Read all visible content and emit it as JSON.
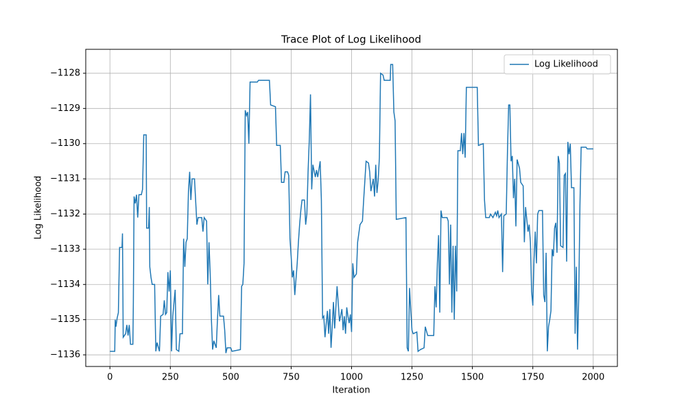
{
  "chart_data": {
    "type": "line",
    "title": "Trace Plot of Log Likelihood",
    "x_label": "Iteration",
    "y_label": "Log Likelihood",
    "grid": true,
    "legend": "upper right",
    "xlim": [
      -100,
      2100
    ],
    "ylim": [
      -1136.33,
      -1127.32
    ],
    "xticks": [
      0,
      250,
      500,
      750,
      1000,
      1250,
      1500,
      1750,
      2000
    ],
    "yticks": [
      {
        "value": -1136,
        "label": "−1136"
      },
      {
        "value": -1135,
        "label": "−1135"
      },
      {
        "value": -1134,
        "label": "−1134"
      },
      {
        "value": -1133,
        "label": "−1133"
      },
      {
        "value": -1132,
        "label": "−1132"
      },
      {
        "value": -1131,
        "label": "−1131"
      },
      {
        "value": -1130,
        "label": "−1130"
      },
      {
        "value": -1129,
        "label": "−1129"
      },
      {
        "value": -1128,
        "label": "−1128"
      }
    ],
    "x": [
      0,
      20,
      22,
      25,
      30,
      35,
      40,
      50,
      52,
      55,
      65,
      70,
      75,
      80,
      85,
      95,
      97,
      100,
      105,
      110,
      115,
      120,
      130,
      135,
      140,
      150,
      152,
      160,
      163,
      165,
      170,
      175,
      185,
      190,
      195,
      205,
      210,
      220,
      225,
      230,
      235,
      240,
      245,
      250,
      255,
      260,
      270,
      275,
      285,
      290,
      300,
      305,
      310,
      315,
      320,
      325,
      330,
      335,
      340,
      350,
      360,
      365,
      380,
      385,
      390,
      400,
      405,
      410,
      415,
      420,
      425,
      430,
      440,
      445,
      450,
      455,
      470,
      475,
      480,
      485,
      500,
      505,
      540,
      545,
      550,
      555,
      560,
      565,
      570,
      575,
      580,
      610,
      615,
      660,
      665,
      685,
      690,
      705,
      710,
      720,
      725,
      735,
      740,
      745,
      750,
      755,
      760,
      765,
      770,
      775,
      780,
      785,
      790,
      795,
      805,
      810,
      815,
      820,
      825,
      830,
      835,
      840,
      850,
      855,
      860,
      870,
      875,
      880,
      885,
      890,
      900,
      905,
      910,
      915,
      920,
      925,
      930,
      940,
      950,
      960,
      965,
      970,
      975,
      980,
      985,
      990,
      995,
      1000,
      1005,
      1010,
      1020,
      1025,
      1035,
      1045,
      1050,
      1060,
      1070,
      1075,
      1080,
      1090,
      1095,
      1100,
      1105,
      1110,
      1115,
      1120,
      1130,
      1135,
      1160,
      1162,
      1170,
      1175,
      1180,
      1185,
      1225,
      1230,
      1235,
      1240,
      1245,
      1250,
      1255,
      1270,
      1275,
      1285,
      1300,
      1305,
      1315,
      1340,
      1345,
      1350,
      1355,
      1360,
      1365,
      1370,
      1375,
      1395,
      1400,
      1405,
      1410,
      1415,
      1420,
      1425,
      1430,
      1435,
      1440,
      1450,
      1455,
      1460,
      1465,
      1470,
      1475,
      1520,
      1525,
      1545,
      1550,
      1555,
      1570,
      1575,
      1585,
      1595,
      1600,
      1605,
      1610,
      1620,
      1625,
      1630,
      1640,
      1645,
      1650,
      1655,
      1660,
      1665,
      1670,
      1675,
      1680,
      1685,
      1695,
      1700,
      1710,
      1715,
      1720,
      1730,
      1735,
      1740,
      1745,
      1750,
      1755,
      1760,
      1765,
      1770,
      1775,
      1790,
      1795,
      1800,
      1805,
      1810,
      1815,
      1820,
      1825,
      1830,
      1835,
      1840,
      1845,
      1850,
      1855,
      1860,
      1865,
      1875,
      1880,
      1885,
      1890,
      1895,
      1900,
      1905,
      1910,
      1920,
      1925,
      1930,
      1935,
      1940,
      1945,
      1950,
      1970,
      1975,
      2000
    ],
    "series": [
      {
        "name": "Log Likelihood",
        "color": "#1f77b4",
        "values": [
          -1135.9,
          -1135.9,
          -1135.0,
          -1135.2,
          -1134.95,
          -1134.8,
          -1132.95,
          -1132.95,
          -1132.55,
          -1135.5,
          -1135.4,
          -1135.15,
          -1135.45,
          -1135.15,
          -1135.7,
          -1135.7,
          -1134.5,
          -1131.5,
          -1131.7,
          -1131.45,
          -1132.1,
          -1131.45,
          -1131.45,
          -1131.3,
          -1129.75,
          -1129.75,
          -1132.4,
          -1132.4,
          -1131.8,
          -1133.5,
          -1133.8,
          -1134.0,
          -1134.0,
          -1135.9,
          -1135.65,
          -1135.9,
          -1134.9,
          -1134.85,
          -1134.45,
          -1134.85,
          -1134.8,
          -1133.65,
          -1134.2,
          -1133.6,
          -1135.9,
          -1134.9,
          -1134.15,
          -1135.85,
          -1135.9,
          -1135.4,
          -1135.4,
          -1132.7,
          -1133.5,
          -1132.8,
          -1132.7,
          -1131.35,
          -1130.8,
          -1131.6,
          -1131.0,
          -1131.0,
          -1132.3,
          -1132.1,
          -1132.1,
          -1132.5,
          -1132.1,
          -1132.2,
          -1134.0,
          -1132.8,
          -1133.7,
          -1135.0,
          -1135.85,
          -1135.6,
          -1135.8,
          -1135.0,
          -1134.3,
          -1134.9,
          -1134.9,
          -1135.3,
          -1135.95,
          -1135.8,
          -1135.8,
          -1135.9,
          -1135.85,
          -1134.05,
          -1134.0,
          -1133.4,
          -1129.05,
          -1129.2,
          -1129.1,
          -1130.0,
          -1128.25,
          -1128.25,
          -1128.2,
          -1128.2,
          -1128.9,
          -1128.95,
          -1130.05,
          -1130.05,
          -1131.1,
          -1131.1,
          -1130.8,
          -1130.8,
          -1130.9,
          -1132.7,
          -1133.2,
          -1133.8,
          -1133.6,
          -1134.3,
          -1133.85,
          -1133.4,
          -1132.8,
          -1132.3,
          -1131.9,
          -1131.6,
          -1131.6,
          -1132.3,
          -1132.0,
          -1130.8,
          -1129.9,
          -1128.6,
          -1131.3,
          -1130.6,
          -1130.95,
          -1130.75,
          -1130.95,
          -1130.5,
          -1131.6,
          -1134.95,
          -1134.9,
          -1135.5,
          -1134.75,
          -1135.4,
          -1134.7,
          -1135.8,
          -1135.2,
          -1134.5,
          -1135.25,
          -1134.05,
          -1135.05,
          -1134.7,
          -1135.3,
          -1134.9,
          -1135.4,
          -1134.65,
          -1134.9,
          -1135.1,
          -1134.85,
          -1135.35,
          -1133.4,
          -1133.8,
          -1133.7,
          -1132.8,
          -1132.3,
          -1132.2,
          -1131.6,
          -1130.5,
          -1130.55,
          -1130.8,
          -1131.35,
          -1131.0,
          -1131.5,
          -1130.6,
          -1131.4,
          -1131.05,
          -1130.4,
          -1128.0,
          -1128.05,
          -1128.2,
          -1128.2,
          -1127.75,
          -1127.75,
          -1129.1,
          -1129.35,
          -1132.15,
          -1132.1,
          -1135.8,
          -1135.9,
          -1134.1,
          -1134.75,
          -1135.3,
          -1135.4,
          -1135.35,
          -1135.9,
          -1135.85,
          -1135.8,
          -1135.2,
          -1135.45,
          -1135.45,
          -1134.05,
          -1134.65,
          -1133.4,
          -1132.6,
          -1134.8,
          -1131.9,
          -1132.1,
          -1132.1,
          -1132.2,
          -1134.0,
          -1132.3,
          -1134.8,
          -1132.9,
          -1135.0,
          -1132.9,
          -1134.2,
          -1130.2,
          -1130.2,
          -1129.7,
          -1130.3,
          -1129.7,
          -1130.4,
          -1128.4,
          -1128.4,
          -1130.05,
          -1130.0,
          -1131.6,
          -1132.1,
          -1132.1,
          -1132.0,
          -1132.1,
          -1131.95,
          -1132.05,
          -1131.9,
          -1132.1,
          -1132.0,
          -1133.65,
          -1132.05,
          -1132.0,
          -1130.25,
          -1128.9,
          -1128.9,
          -1130.5,
          -1130.35,
          -1131.55,
          -1131.0,
          -1132.35,
          -1130.45,
          -1130.7,
          -1131.1,
          -1131.2,
          -1132.8,
          -1131.8,
          -1132.5,
          -1132.3,
          -1132.8,
          -1134.2,
          -1134.6,
          -1133.3,
          -1132.5,
          -1133.4,
          -1132.0,
          -1131.9,
          -1131.9,
          -1134.3,
          -1134.5,
          -1133.1,
          -1135.9,
          -1135.2,
          -1135.0,
          -1134.75,
          -1133.0,
          -1133.2,
          -1132.4,
          -1132.25,
          -1133.1,
          -1130.35,
          -1130.55,
          -1132.9,
          -1132.95,
          -1130.9,
          -1130.85,
          -1133.35,
          -1129.95,
          -1130.3,
          -1130.0,
          -1131.25,
          -1131.25,
          -1135.4,
          -1133.5,
          -1135.85,
          -1134.35,
          -1131.75,
          -1130.1,
          -1130.1,
          -1130.15,
          -1130.15
        ]
      }
    ]
  }
}
